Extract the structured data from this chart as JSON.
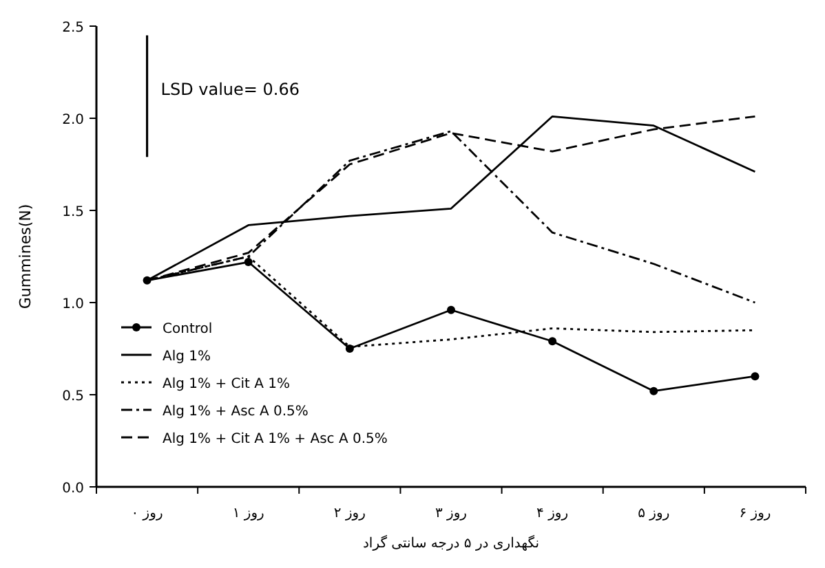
{
  "chart_data": {
    "type": "line",
    "ylabel": "Gummines(N)",
    "xlabel": "نگهداری در ۵ درجه سانتی گراد",
    "categories": [
      "روز ۰",
      "روز ۱",
      "روز ۲",
      "روز ۳",
      "روز ۴",
      "روز ۵",
      "روز ۶"
    ],
    "ylim": [
      0,
      2.5
    ],
    "yticks": [
      {
        "value": 0,
        "label": "0.0"
      },
      0.5,
      {
        "value": 1,
        "label": "1.0"
      },
      1.5,
      {
        "value": 2,
        "label": "2.0"
      },
      2.5
    ],
    "annotations": [
      "LSD value= 0.66"
    ],
    "legend": "bottom left",
    "grid": false,
    "series": [
      {
        "name": "Control",
        "color": "#000000",
        "marker": "circle",
        "line_style": "solid",
        "values": [
          1.12,
          1.22,
          0.75,
          0.96,
          0.79,
          0.52,
          0.6
        ]
      },
      {
        "name": "Alg 1%",
        "color": "#000000",
        "marker": "none",
        "line_style": "solid",
        "values": [
          1.12,
          1.42,
          1.47,
          1.51,
          2.01,
          1.96,
          1.71
        ]
      },
      {
        "name": "Alg 1% + Cit A 1%",
        "color": "#000000",
        "marker": "none",
        "line_style": "dotted",
        "values": [
          1.12,
          1.25,
          0.76,
          0.8,
          0.86,
          0.84,
          0.85
        ]
      },
      {
        "name": "Alg 1% + Asc A 0.5%",
        "color": "#000000",
        "marker": "none",
        "line_style": "dashdot",
        "values": [
          1.12,
          1.25,
          1.77,
          1.93,
          1.38,
          1.21,
          1.0
        ]
      },
      {
        "name": "Alg 1% + Cit A 1% + Asc A 0.5%",
        "color": "#000000",
        "marker": "none",
        "line_style": "dashed",
        "values": [
          1.12,
          1.27,
          1.75,
          1.92,
          1.82,
          1.94,
          2.01
        ]
      },
      {
        "type": "bar",
        "color": "#000000",
        "values": [
          0.66,
          null,
          null,
          null,
          null,
          null,
          null
        ],
        "base": [
          1.79,
          null,
          null,
          null,
          null,
          null,
          null
        ]
      }
    ]
  }
}
